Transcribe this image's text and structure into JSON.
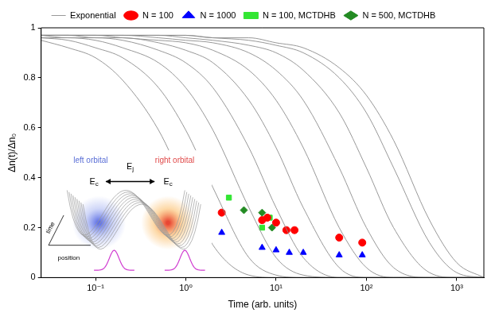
{
  "chart_data": {
    "type": "scatter",
    "xlabel": "Time (arb. units)",
    "ylabel": "Δn(t)/Δn₀",
    "log": "x",
    "xlim": [
      0.025,
      2000
    ],
    "xticks": [
      {
        "value": 0.1,
        "label": "10⁻¹"
      },
      {
        "value": 1,
        "label": "10⁰"
      },
      {
        "value": 10,
        "label": "10¹"
      },
      {
        "value": 100,
        "label": "10²"
      },
      {
        "value": 1000,
        "label": "10³"
      }
    ],
    "ylim": [
      0,
      1
    ],
    "yticks": [
      0,
      0.2,
      0.4,
      0.6,
      0.8,
      1
    ],
    "grid": false,
    "legend": "top",
    "series": [
      {
        "name": "Exponential",
        "type": "line",
        "color": "#8c8c8c",
        "line_style": "solid",
        "x": [
          0.025,
          0.05,
          0.1,
          0.2,
          0.5,
          1,
          2,
          5,
          10,
          20,
          50,
          100,
          200,
          500,
          1000,
          2000
        ],
        "values": [
          [
            0.95,
            0.92,
            0.88,
            0.79,
            0.59,
            0.36,
            0.13,
            0.01,
            0,
            0,
            0,
            0,
            0,
            0,
            0,
            0
          ],
          [
            0.96,
            0.95,
            0.92,
            0.88,
            0.76,
            0.59,
            0.36,
            0.08,
            0.01,
            0,
            0,
            0,
            0,
            0,
            0,
            0
          ],
          [
            0.96,
            0.96,
            0.95,
            0.92,
            0.86,
            0.76,
            0.59,
            0.28,
            0.08,
            0.01,
            0,
            0,
            0,
            0,
            0,
            0
          ],
          [
            0.97,
            0.96,
            0.96,
            0.95,
            0.91,
            0.86,
            0.76,
            0.52,
            0.28,
            0.08,
            0,
            0,
            0,
            0,
            0,
            0
          ],
          [
            0.97,
            0.97,
            0.96,
            0.96,
            0.94,
            0.91,
            0.86,
            0.71,
            0.52,
            0.28,
            0.04,
            0,
            0,
            0,
            0,
            0
          ],
          [
            0.97,
            0.97,
            0.97,
            0.96,
            0.95,
            0.94,
            0.91,
            0.83,
            0.71,
            0.52,
            0.2,
            0.04,
            0,
            0,
            0,
            0
          ],
          [
            0.97,
            0.97,
            0.97,
            0.97,
            0.96,
            0.95,
            0.94,
            0.9,
            0.83,
            0.71,
            0.44,
            0.2,
            0.04,
            0,
            0,
            0
          ],
          [
            0.97,
            0.97,
            0.97,
            0.97,
            0.97,
            0.96,
            0.95,
            0.93,
            0.9,
            0.83,
            0.66,
            0.44,
            0.2,
            0.02,
            0,
            0
          ],
          [
            0.97,
            0.97,
            0.97,
            0.97,
            0.97,
            0.97,
            0.96,
            0.95,
            0.93,
            0.9,
            0.8,
            0.66,
            0.44,
            0.14,
            0.02,
            0
          ],
          [
            0.97,
            0.97,
            0.97,
            0.97,
            0.97,
            0.97,
            0.96,
            0.96,
            0.94,
            0.92,
            0.84,
            0.73,
            0.55,
            0.23,
            0.06,
            0
          ]
        ]
      },
      {
        "name": "N = 100",
        "type": "scatter",
        "color": "#ff0000",
        "marker": "circle",
        "x": [
          2.5,
          7,
          8,
          10,
          13,
          16,
          50,
          90
        ],
        "values": [
          0.26,
          0.23,
          0.24,
          0.22,
          0.19,
          0.19,
          0.16,
          0.14
        ]
      },
      {
        "name": "N = 1000",
        "type": "scatter",
        "color": "#0000ff",
        "marker": "triangle",
        "x": [
          2.5,
          7,
          10,
          14,
          20,
          50,
          90
        ],
        "values": [
          0.18,
          0.12,
          0.11,
          0.1,
          0.1,
          0.09,
          0.09
        ]
      },
      {
        "name": "N = 100, MCTDHB",
        "type": "scatter",
        "color": "#33e633",
        "marker": "square",
        "x": [
          3,
          7,
          8.5
        ],
        "values": [
          0.32,
          0.2,
          0.24
        ]
      },
      {
        "name": "N = 500, MCTDHB",
        "type": "scatter",
        "color": "#238b23",
        "marker": "diamond",
        "x": [
          4.4,
          7,
          9
        ],
        "values": [
          0.27,
          0.26,
          0.2
        ]
      }
    ],
    "annotations": {
      "left_orbital": "left orbital",
      "right_orbital": "right orbital",
      "left_energy": "Ec",
      "coupling": "Ej",
      "right_energy": "Ec",
      "time_axis": "time",
      "position_axis": "position"
    }
  }
}
